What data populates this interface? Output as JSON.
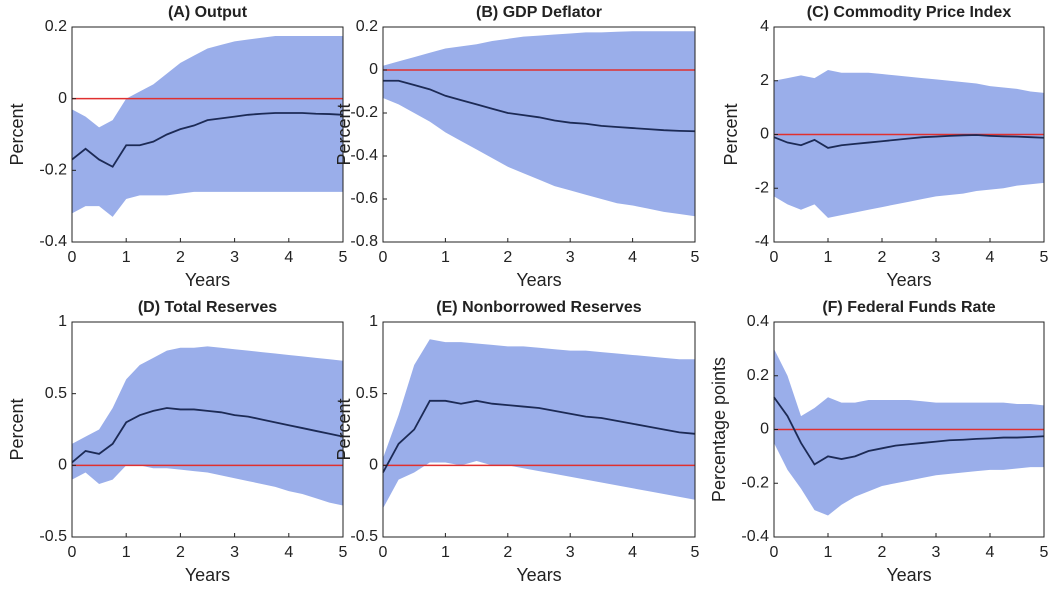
{
  "chart_data": [
    {
      "type": "line",
      "title": "(A) Output",
      "xlabel": "Years",
      "ylabel": "Percent",
      "x": [
        0,
        0.25,
        0.5,
        0.75,
        1,
        1.25,
        1.5,
        1.75,
        2,
        2.25,
        2.5,
        2.75,
        3,
        3.25,
        3.5,
        3.75,
        4,
        4.25,
        4.5,
        4.75,
        5
      ],
      "xlim": [
        0,
        5
      ],
      "xticks": [
        0,
        1,
        2,
        3,
        4,
        5
      ],
      "ylim": [
        -0.4,
        0.2
      ],
      "yticks": [
        -0.4,
        -0.2,
        0,
        0.2
      ],
      "line": {
        "color": "#1c2a55",
        "values": [
          -0.17,
          -0.14,
          -0.17,
          -0.19,
          -0.13,
          -0.13,
          -0.12,
          -0.1,
          -0.085,
          -0.075,
          -0.06,
          -0.055,
          -0.05,
          -0.045,
          -0.042,
          -0.04,
          -0.04,
          -0.04,
          -0.042,
          -0.043,
          -0.045
        ]
      },
      "band": {
        "color": "#9aaeea",
        "upper": [
          -0.03,
          -0.05,
          -0.08,
          -0.06,
          0,
          0.02,
          0.04,
          0.07,
          0.1,
          0.12,
          0.14,
          0.15,
          0.16,
          0.165,
          0.17,
          0.175,
          0.175,
          0.175,
          0.175,
          0.175,
          0.175
        ],
        "lower": [
          -0.32,
          -0.3,
          -0.3,
          -0.33,
          -0.28,
          -0.27,
          -0.27,
          -0.27,
          -0.265,
          -0.26,
          -0.26,
          -0.26,
          -0.26,
          -0.26,
          -0.26,
          -0.26,
          -0.26,
          -0.26,
          -0.26,
          -0.26,
          -0.26
        ]
      },
      "reference_line": {
        "value": 0,
        "color": "#e0302f"
      }
    },
    {
      "type": "line",
      "title": "(B) GDP Deflator",
      "xlabel": "Years",
      "ylabel": "Percent",
      "x": [
        0,
        0.25,
        0.5,
        0.75,
        1,
        1.25,
        1.5,
        1.75,
        2,
        2.25,
        2.5,
        2.75,
        3,
        3.25,
        3.5,
        3.75,
        4,
        4.25,
        4.5,
        4.75,
        5
      ],
      "xlim": [
        0,
        5
      ],
      "xticks": [
        0,
        1,
        2,
        3,
        4,
        5
      ],
      "ylim": [
        -0.8,
        0.2
      ],
      "yticks": [
        -0.8,
        -0.6,
        -0.4,
        -0.2,
        0,
        0.2
      ],
      "line": {
        "color": "#1c2a55",
        "values": [
          -0.05,
          -0.05,
          -0.07,
          -0.09,
          -0.12,
          -0.14,
          -0.16,
          -0.18,
          -0.2,
          -0.21,
          -0.22,
          -0.235,
          -0.245,
          -0.25,
          -0.26,
          -0.265,
          -0.27,
          -0.275,
          -0.28,
          -0.283,
          -0.285
        ]
      },
      "band": {
        "color": "#9aaeea",
        "upper": [
          0.02,
          0.04,
          0.06,
          0.08,
          0.1,
          0.11,
          0.12,
          0.135,
          0.145,
          0.155,
          0.16,
          0.165,
          0.17,
          0.175,
          0.175,
          0.178,
          0.18,
          0.18,
          0.18,
          0.18,
          0.18
        ],
        "lower": [
          -0.13,
          -0.16,
          -0.2,
          -0.24,
          -0.29,
          -0.33,
          -0.37,
          -0.41,
          -0.45,
          -0.48,
          -0.51,
          -0.54,
          -0.56,
          -0.58,
          -0.6,
          -0.62,
          -0.63,
          -0.645,
          -0.66,
          -0.67,
          -0.68
        ]
      },
      "reference_line": {
        "value": 0,
        "color": "#e0302f"
      }
    },
    {
      "type": "line",
      "title": "(C) Commodity Price Index",
      "xlabel": "Years",
      "ylabel": "Percent",
      "x": [
        0,
        0.25,
        0.5,
        0.75,
        1,
        1.25,
        1.5,
        1.75,
        2,
        2.25,
        2.5,
        2.75,
        3,
        3.25,
        3.5,
        3.75,
        4,
        4.25,
        4.5,
        4.75,
        5
      ],
      "xlim": [
        0,
        5
      ],
      "xticks": [
        0,
        1,
        2,
        3,
        4,
        5
      ],
      "ylim": [
        -4,
        4
      ],
      "yticks": [
        -4,
        -2,
        0,
        2,
        4
      ],
      "line": {
        "color": "#1c2a55",
        "values": [
          -0.1,
          -0.3,
          -0.4,
          -0.2,
          -0.5,
          -0.4,
          -0.35,
          -0.3,
          -0.25,
          -0.2,
          -0.15,
          -0.1,
          -0.08,
          -0.05,
          -0.03,
          -0.02,
          -0.05,
          -0.07,
          -0.08,
          -0.1,
          -0.12
        ]
      },
      "band": {
        "color": "#9aaeea",
        "upper": [
          2,
          2.1,
          2.2,
          2.1,
          2.4,
          2.3,
          2.3,
          2.3,
          2.25,
          2.2,
          2.15,
          2.1,
          2.05,
          2,
          1.95,
          1.9,
          1.8,
          1.75,
          1.7,
          1.6,
          1.55
        ],
        "lower": [
          -2.3,
          -2.6,
          -2.8,
          -2.6,
          -3.1,
          -3,
          -2.9,
          -2.8,
          -2.7,
          -2.6,
          -2.5,
          -2.4,
          -2.3,
          -2.25,
          -2.2,
          -2.1,
          -2.05,
          -2,
          -1.9,
          -1.85,
          -1.8
        ]
      },
      "reference_line": {
        "value": 0,
        "color": "#e0302f"
      }
    },
    {
      "type": "line",
      "title": "(D) Total Reserves",
      "xlabel": "Years",
      "ylabel": "Percent",
      "x": [
        0,
        0.25,
        0.5,
        0.75,
        1,
        1.25,
        1.5,
        1.75,
        2,
        2.25,
        2.5,
        2.75,
        3,
        3.25,
        3.5,
        3.75,
        4,
        4.25,
        4.5,
        4.75,
        5
      ],
      "xlim": [
        0,
        5
      ],
      "xticks": [
        0,
        1,
        2,
        3,
        4,
        5
      ],
      "ylim": [
        -0.5,
        1
      ],
      "yticks": [
        -0.5,
        0,
        0.5,
        1
      ],
      "line": {
        "color": "#1c2a55",
        "values": [
          0.02,
          0.1,
          0.08,
          0.15,
          0.3,
          0.35,
          0.38,
          0.4,
          0.39,
          0.39,
          0.38,
          0.37,
          0.35,
          0.34,
          0.32,
          0.3,
          0.28,
          0.26,
          0.24,
          0.22,
          0.2
        ]
      },
      "band": {
        "color": "#9aaeea",
        "upper": [
          0.15,
          0.2,
          0.25,
          0.4,
          0.6,
          0.7,
          0.75,
          0.8,
          0.82,
          0.82,
          0.83,
          0.82,
          0.81,
          0.8,
          0.79,
          0.78,
          0.77,
          0.76,
          0.75,
          0.74,
          0.73
        ],
        "lower": [
          -0.1,
          -0.05,
          -0.13,
          -0.1,
          0,
          0,
          -0.02,
          -0.02,
          -0.03,
          -0.04,
          -0.05,
          -0.07,
          -0.09,
          -0.11,
          -0.13,
          -0.15,
          -0.18,
          -0.2,
          -0.23,
          -0.26,
          -0.28
        ]
      },
      "reference_line": {
        "value": 0,
        "color": "#e0302f"
      }
    },
    {
      "type": "line",
      "title": "(E) Nonborrowed Reserves",
      "xlabel": "Years",
      "ylabel": "Percent",
      "x": [
        0,
        0.25,
        0.5,
        0.75,
        1,
        1.25,
        1.5,
        1.75,
        2,
        2.25,
        2.5,
        2.75,
        3,
        3.25,
        3.5,
        3.75,
        4,
        4.25,
        4.5,
        4.75,
        5
      ],
      "xlim": [
        0,
        5
      ],
      "xticks": [
        0,
        1,
        2,
        3,
        4,
        5
      ],
      "ylim": [
        -0.5,
        1
      ],
      "yticks": [
        -0.5,
        0,
        0.5,
        1
      ],
      "line": {
        "color": "#1c2a55",
        "values": [
          -0.05,
          0.15,
          0.25,
          0.45,
          0.45,
          0.43,
          0.45,
          0.43,
          0.42,
          0.41,
          0.4,
          0.38,
          0.36,
          0.34,
          0.33,
          0.31,
          0.29,
          0.27,
          0.25,
          0.23,
          0.22
        ]
      },
      "band": {
        "color": "#9aaeea",
        "upper": [
          0.05,
          0.35,
          0.7,
          0.88,
          0.86,
          0.86,
          0.85,
          0.84,
          0.83,
          0.83,
          0.82,
          0.81,
          0.8,
          0.8,
          0.79,
          0.78,
          0.77,
          0.76,
          0.75,
          0.74,
          0.74
        ],
        "lower": [
          -0.3,
          -0.1,
          -0.05,
          0.02,
          0.02,
          0,
          0.03,
          0,
          0,
          -0.02,
          -0.04,
          -0.06,
          -0.08,
          -0.1,
          -0.12,
          -0.14,
          -0.16,
          -0.18,
          -0.2,
          -0.22,
          -0.24
        ]
      },
      "reference_line": {
        "value": 0,
        "color": "#e0302f"
      }
    },
    {
      "type": "line",
      "title": "(F) Federal Funds Rate",
      "xlabel": "Years",
      "ylabel": "Percentage points",
      "x": [
        0,
        0.25,
        0.5,
        0.75,
        1,
        1.25,
        1.5,
        1.75,
        2,
        2.25,
        2.5,
        2.75,
        3,
        3.25,
        3.5,
        3.75,
        4,
        4.25,
        4.5,
        4.75,
        5
      ],
      "xlim": [
        0,
        5
      ],
      "xticks": [
        0,
        1,
        2,
        3,
        4,
        5
      ],
      "ylim": [
        -0.4,
        0.4
      ],
      "yticks": [
        -0.4,
        -0.2,
        0,
        0.2,
        0.4
      ],
      "line": {
        "color": "#1c2a55",
        "values": [
          0.12,
          0.05,
          -0.05,
          -0.13,
          -0.1,
          -0.11,
          -0.1,
          -0.08,
          -0.07,
          -0.06,
          -0.055,
          -0.05,
          -0.045,
          -0.04,
          -0.038,
          -0.035,
          -0.033,
          -0.03,
          -0.03,
          -0.028,
          -0.025
        ]
      },
      "band": {
        "color": "#9aaeea",
        "upper": [
          0.3,
          0.2,
          0.05,
          0.08,
          0.12,
          0.1,
          0.1,
          0.11,
          0.11,
          0.11,
          0.11,
          0.105,
          0.1,
          0.1,
          0.1,
          0.1,
          0.1,
          0.1,
          0.095,
          0.095,
          0.09
        ],
        "lower": [
          -0.05,
          -0.15,
          -0.22,
          -0.3,
          -0.32,
          -0.28,
          -0.25,
          -0.23,
          -0.21,
          -0.2,
          -0.19,
          -0.18,
          -0.17,
          -0.165,
          -0.16,
          -0.155,
          -0.15,
          -0.15,
          -0.145,
          -0.14,
          -0.14
        ]
      },
      "reference_line": {
        "value": 0,
        "color": "#e0302f"
      }
    }
  ]
}
